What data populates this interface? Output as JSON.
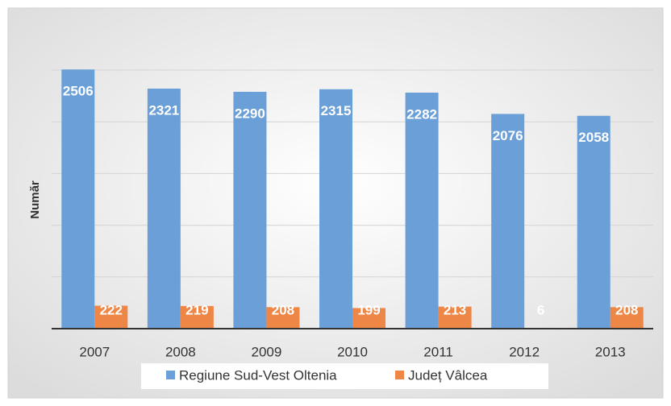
{
  "chart_data": {
    "type": "bar",
    "y_label": "Număr",
    "categories": [
      "2007",
      "2008",
      "2009",
      "2010",
      "2011",
      "2012",
      "2013"
    ],
    "series": [
      {
        "name": "Regiune Sud-Vest Oltenia",
        "color": "#6a9fd8",
        "values": [
          2506,
          2321,
          2290,
          2315,
          2282,
          2076,
          2058
        ]
      },
      {
        "name": "Județ Vâlcea",
        "color": "#ee8645",
        "values": [
          222,
          219,
          208,
          199,
          213,
          6,
          208
        ]
      }
    ],
    "ylim": [
      0,
      2500
    ],
    "yticks": [
      0,
      500,
      1000,
      1500,
      2000,
      2500
    ],
    "grid": true,
    "legend": "bottom"
  }
}
